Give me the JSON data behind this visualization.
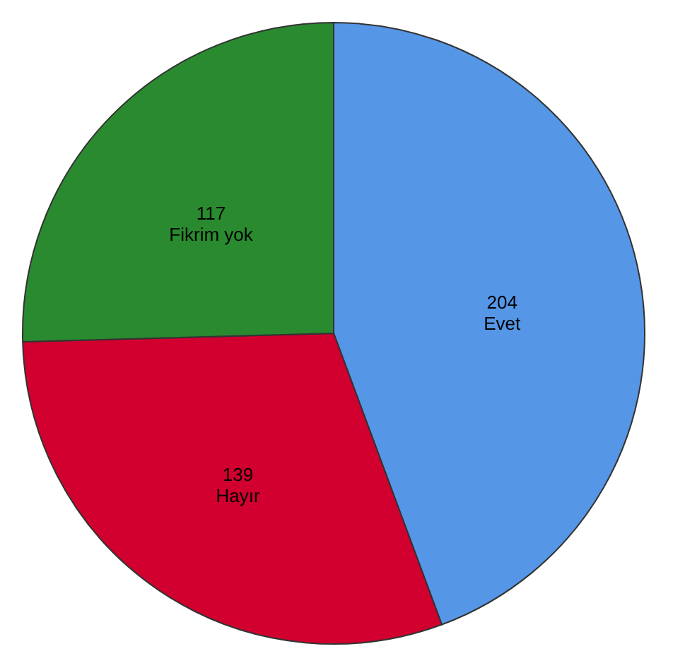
{
  "chart_data": {
    "type": "pie",
    "categories": [
      "Evet",
      "Hayır",
      "Fikrim yok"
    ],
    "values": [
      204,
      139,
      117
    ],
    "colors": [
      "#5596e6",
      "#d1002f",
      "#2a8a2f"
    ],
    "data_labels": true,
    "legend": false
  }
}
